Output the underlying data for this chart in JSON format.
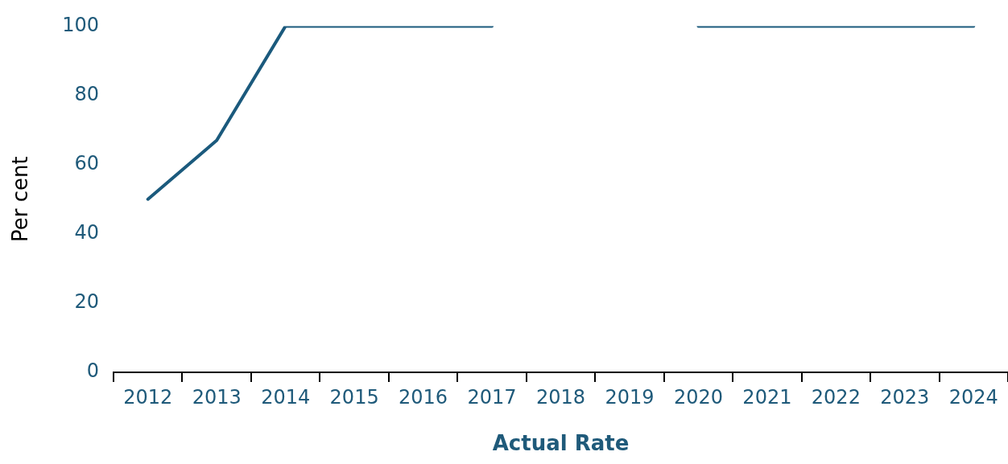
{
  "chart_data": {
    "type": "line",
    "categories": [
      "2012",
      "2013",
      "2014",
      "2015",
      "2016",
      "2017",
      "2018",
      "2019",
      "2020",
      "2021",
      "2022",
      "2023",
      "2024"
    ],
    "series": [
      {
        "color": "#1b5a7d",
        "values": [
          50,
          67,
          100,
          100,
          100,
          100,
          null,
          null,
          100,
          100,
          100,
          100,
          100
        ]
      }
    ],
    "xlabel": "Actual Rate",
    "ylabel": "Per cent",
    "ylim": [
      0,
      100
    ],
    "yticks": [
      0,
      20,
      40,
      60,
      80,
      100
    ],
    "marker": "none",
    "legend": false
  }
}
